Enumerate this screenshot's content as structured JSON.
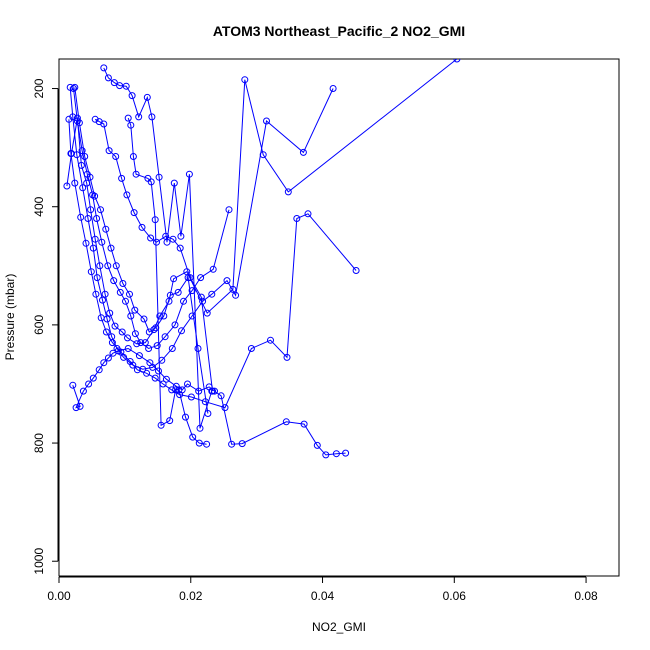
{
  "chart_data": {
    "type": "scatter",
    "title": "ATOM3 Northeast_Pacific_2 NO2_GMI",
    "xlabel": "NO2_GMI",
    "ylabel": "Pressure (mbar)",
    "xlim": [
      0,
      0.085
    ],
    "ylim": [
      1025,
      150
    ],
    "y_reversed": true,
    "xticks": [
      0.0,
      0.02,
      0.04,
      0.06,
      0.08
    ],
    "xtick_labels": [
      "0.00",
      "0.02",
      "0.04",
      "0.06",
      "0.08"
    ],
    "yticks": [
      200,
      400,
      600,
      800,
      1000
    ],
    "ytick_labels": [
      "200",
      "400",
      "600",
      "800",
      "1000"
    ],
    "grid": false,
    "series_color": "#0000ff",
    "markers": "open-circle",
    "connected": true,
    "series": [
      {
        "name": "",
        "x": [
          0.0021,
          0.0032,
          0.0026,
          0.0037,
          0.0045,
          0.0052,
          0.0061,
          0.0068,
          0.0075,
          0.0082,
          0.009,
          0.0105,
          0.0122,
          0.0138,
          0.0151,
          0.0163,
          0.0178,
          0.0187,
          0.0195,
          0.0212,
          0.0228,
          0.0236,
          0.0246,
          0.0262,
          0.0278,
          0.0345,
          0.0372,
          0.0392,
          0.0405,
          0.0421,
          0.0435
        ],
        "y": [
          702,
          738,
          740,
          712,
          700,
          690,
          676,
          664,
          656,
          648,
          644,
          640,
          652,
          664,
          678,
          692,
          704,
          710,
          700,
          712,
          705,
          712,
          720,
          802,
          801,
          764,
          768,
          804,
          820,
          818,
          817
        ]
      },
      {
        "name": "",
        "x": [
          0.0015,
          0.0018,
          0.0024,
          0.0033,
          0.0041,
          0.0049,
          0.0056,
          0.0064,
          0.0072,
          0.0081,
          0.0094,
          0.0108,
          0.0119,
          0.0133,
          0.0146,
          0.0158,
          0.0171,
          0.0183,
          0.0201,
          0.0222,
          0.0252,
          0.0292,
          0.0321,
          0.0346,
          0.0361,
          0.0378,
          0.0451
        ],
        "y": [
          252,
          310,
          360,
          418,
          462,
          510,
          548,
          588,
          612,
          630,
          646,
          662,
          676,
          682,
          690,
          700,
          710,
          718,
          722,
          730,
          740,
          640,
          626,
          655,
          420,
          412,
          508
        ]
      },
      {
        "name": "",
        "x": [
          0.0017,
          0.0021,
          0.0027,
          0.0036,
          0.0044,
          0.0052,
          0.0058,
          0.0066,
          0.0073,
          0.008,
          0.0088,
          0.0098,
          0.0112,
          0.0127,
          0.0142,
          0.0156,
          0.0172,
          0.0186,
          0.0202,
          0.0218,
          0.0232,
          0.0255,
          0.0268,
          0.0315,
          0.0371,
          0.0416
        ],
        "y": [
          198,
          248,
          312,
          368,
          420,
          470,
          520,
          558,
          590,
          620,
          640,
          655,
          668,
          675,
          672,
          660,
          640,
          610,
          585,
          560,
          548,
          525,
          550,
          255,
          308,
          200
        ]
      },
      {
        "name": "",
        "x": [
          0.0012,
          0.0019,
          0.0028,
          0.0034,
          0.0042,
          0.0048,
          0.0055,
          0.0062,
          0.007,
          0.0077,
          0.0085,
          0.0096,
          0.0104,
          0.0118,
          0.0131,
          0.0144,
          0.0153,
          0.0167,
          0.0174,
          0.0194,
          0.0225,
          0.0264,
          0.0282,
          0.031,
          0.0348,
          0.0604
        ],
        "y": [
          365,
          310,
          250,
          330,
          360,
          405,
          455,
          500,
          548,
          580,
          602,
          612,
          622,
          632,
          630,
          608,
          585,
          560,
          522,
          510,
          580,
          540,
          185,
          312,
          375,
          150
        ]
      },
      {
        "name": "",
        "x": [
          0.0022,
          0.0028,
          0.0035,
          0.0043,
          0.0051,
          0.0057,
          0.0065,
          0.0074,
          0.0083,
          0.0093,
          0.0101,
          0.0109,
          0.0116,
          0.0124,
          0.0136,
          0.0149,
          0.0161,
          0.0176,
          0.0189,
          0.0202,
          0.0215,
          0.0234,
          0.0258
        ],
        "y": [
          200,
          255,
          305,
          345,
          380,
          420,
          460,
          500,
          525,
          545,
          560,
          585,
          615,
          630,
          640,
          635,
          620,
          600,
          560,
          542,
          520,
          506,
          405
        ]
      },
      {
        "name": "",
        "x": [
          0.0024,
          0.0031,
          0.0039,
          0.0047,
          0.0054,
          0.0063,
          0.0071,
          0.0079,
          0.0087,
          0.0097,
          0.0107,
          0.0115,
          0.0129,
          0.0137,
          0.0147,
          0.0159,
          0.0169,
          0.0181,
          0.0196,
          0.0211,
          0.0226
        ],
        "y": [
          198,
          258,
          315,
          350,
          382,
          405,
          438,
          470,
          500,
          530,
          548,
          575,
          590,
          612,
          605,
          585,
          550,
          545,
          520,
          640,
          750
        ]
      },
      {
        "name": "",
        "x": [
          0.0055,
          0.0061,
          0.0068,
          0.0076,
          0.0086,
          0.0095,
          0.0103,
          0.0114,
          0.0126,
          0.0139,
          0.0148,
          0.0162,
          0.0173,
          0.0184,
          0.0199,
          0.0216,
          0.0233
        ],
        "y": [
          252,
          256,
          260,
          305,
          315,
          352,
          380,
          410,
          435,
          453,
          460,
          450,
          455,
          470,
          520,
          553,
          712
        ]
      },
      {
        "name": "",
        "x": [
          0.0068,
          0.0075,
          0.0084,
          0.0092,
          0.0102,
          0.0111,
          0.0121,
          0.0134,
          0.0141,
          0.0152,
          0.0164,
          0.0175,
          0.0185,
          0.0198,
          0.0214,
          0.0232
        ],
        "y": [
          165,
          182,
          190,
          195,
          196,
          212,
          248,
          215,
          248,
          350,
          460,
          360,
          450,
          345,
          775,
          712
        ]
      },
      {
        "name": "",
        "x": [
          0.0105,
          0.0109,
          0.0113,
          0.0117,
          0.0135,
          0.014,
          0.0146,
          0.0155,
          0.0168,
          0.0177,
          0.0182,
          0.0192,
          0.0203,
          0.0213,
          0.0224
        ],
        "y": [
          250,
          262,
          315,
          345,
          352,
          358,
          422,
          770,
          762,
          710,
          710,
          756,
          790,
          800,
          802
        ]
      }
    ]
  }
}
